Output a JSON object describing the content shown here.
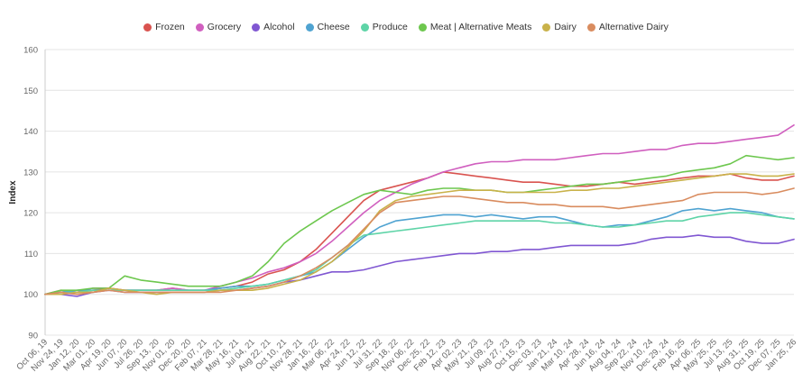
{
  "chart_data": {
    "type": "line",
    "ylabel": "Index",
    "ylim": [
      90,
      160
    ],
    "yticks": [
      90,
      100,
      110,
      120,
      130,
      140,
      150,
      160
    ],
    "grid": true,
    "legend_position": "top-center",
    "x_tick_labels": [
      "Oct 06, 19",
      "Nov 24, 19",
      "Jan 12, 20",
      "Mar 01, 20",
      "Apr 19, 20",
      "Jun 07, 20",
      "Jul 26, 20",
      "Sep 13, 20",
      "Nov 01, 20",
      "Dec 20, 20",
      "Feb 07, 21",
      "Mar 28, 21",
      "May 16, 21",
      "Jul 04, 21",
      "Aug 22, 21",
      "Oct 10, 21",
      "Nov 28, 21",
      "Jan 16, 22",
      "Mar 06, 22",
      "Apr 24, 22",
      "Jun 12, 22",
      "Jul 31, 22",
      "Sep 18, 22",
      "Nov 06, 22",
      "Dec 25, 22",
      "Feb 12, 23",
      "Apr 02, 23",
      "May 21, 23",
      "Jul 09, 23",
      "Aug 27, 23",
      "Oct 15, 23",
      "Dec 03, 23",
      "Jan 21, 24",
      "Mar 10, 24",
      "Apr 28, 24",
      "Jun 16, 24",
      "Aug 04, 24",
      "Sep 22, 24",
      "Nov 10, 24",
      "Dec 29, 24",
      "Feb 16, 25",
      "Apr 06, 25",
      "May 25, 25",
      "Jul 13, 25",
      "Aug 31, 25",
      "Oct 19, 25",
      "Dec 07, 25",
      "Jan 25, 26"
    ],
    "series": [
      {
        "name": "Frozen",
        "color": "#d9534f",
        "values": [
          100,
          101,
          100.5,
          101,
          101.5,
          101,
          101,
          101,
          101.5,
          101,
          101,
          101.5,
          102,
          103,
          105,
          106,
          108,
          111,
          115,
          119,
          123,
          125.5,
          126.5,
          127.5,
          128.5,
          130,
          129.5,
          129,
          128.5,
          128,
          127.5,
          127.5,
          127,
          126.5,
          126.5,
          127,
          127.5,
          127,
          127.5,
          128,
          128.5,
          129,
          129,
          129.5,
          128.5,
          128,
          128,
          129
        ]
      },
      {
        "name": "Grocery",
        "color": "#d05fbf",
        "values": [
          100,
          100.5,
          100.5,
          101.5,
          101.5,
          101,
          101,
          101,
          101.5,
          101,
          101,
          102,
          103,
          104,
          105.5,
          106.5,
          108,
          110,
          113,
          116.5,
          120,
          123,
          125,
          127,
          128.5,
          130,
          131,
          132,
          132.5,
          132.5,
          133,
          133,
          133,
          133.5,
          134,
          134.5,
          134.5,
          135,
          135.5,
          135.5,
          136.5,
          137,
          137,
          137.5,
          138,
          138.5,
          139,
          141.5
        ]
      },
      {
        "name": "Alcohol",
        "color": "#8057d2",
        "values": [
          100,
          100,
          99.5,
          100.5,
          101,
          100.5,
          100.5,
          100.5,
          100.5,
          100.5,
          100.5,
          101,
          101,
          101.5,
          102,
          103,
          103.5,
          104.5,
          105.5,
          105.5,
          106,
          107,
          108,
          108.5,
          109,
          109.5,
          110,
          110,
          110.5,
          110.5,
          111,
          111,
          111.5,
          112,
          112,
          112,
          112,
          112.5,
          113.5,
          114,
          114,
          114.5,
          114,
          114,
          113,
          112.5,
          112.5,
          113.5
        ]
      },
      {
        "name": "Cheese",
        "color": "#4fa3d1",
        "values": [
          100,
          100.5,
          101,
          101,
          101,
          101,
          101,
          101,
          101,
          101,
          101,
          101.5,
          102,
          102,
          102.5,
          103.5,
          104.5,
          105.5,
          108,
          111,
          114,
          116.5,
          118,
          118.5,
          119,
          119.5,
          119.5,
          119,
          119.5,
          119,
          118.5,
          119,
          119,
          118,
          117,
          116.5,
          117,
          117,
          118,
          119,
          120.5,
          121,
          120.5,
          121,
          120.5,
          120,
          119,
          118.5
        ]
      },
      {
        "name": "Produce",
        "color": "#5ed4a7",
        "values": [
          100,
          100.5,
          100.5,
          101,
          101,
          101,
          101,
          101,
          101,
          101,
          101,
          101,
          101.5,
          102,
          102.5,
          103.5,
          104.5,
          106,
          109,
          112,
          114.5,
          115,
          115.5,
          116,
          116.5,
          117,
          117.5,
          118,
          118,
          118,
          118,
          118,
          117.5,
          117.5,
          117,
          116.5,
          116.5,
          117,
          117.5,
          118,
          118,
          119,
          119.5,
          120,
          120,
          119.5,
          119,
          118.5
        ]
      },
      {
        "name": "Meat | Alternative Meats",
        "color": "#6dc74e",
        "values": [
          100,
          101,
          101,
          101.5,
          101.5,
          104.5,
          103.5,
          103,
          102.5,
          102,
          102,
          102,
          103,
          104.5,
          108,
          112.5,
          115.5,
          118,
          120.5,
          122.5,
          124.5,
          125.5,
          125,
          124.5,
          125.5,
          126,
          126,
          125.5,
          125.5,
          125,
          125,
          125.5,
          126,
          126.5,
          127,
          127,
          127.5,
          128,
          128.5,
          129,
          130,
          130.5,
          131,
          132,
          134,
          133.5,
          133,
          133.5
        ]
      },
      {
        "name": "Dairy",
        "color": "#c9b24a",
        "values": [
          100,
          100,
          100.5,
          100.5,
          101.5,
          101,
          100.5,
          100,
          100.5,
          100.5,
          100.5,
          101,
          101,
          101,
          101.5,
          102.5,
          103.5,
          105.5,
          108,
          111.5,
          115.5,
          120.5,
          123,
          124,
          124.5,
          125,
          125.5,
          125.5,
          125.5,
          125,
          125,
          125,
          125,
          125.5,
          125.5,
          126,
          126,
          126.5,
          127,
          127.5,
          128,
          128.5,
          129,
          129.5,
          129.5,
          129,
          129,
          129.5
        ]
      },
      {
        "name": "Alternative Dairy",
        "color": "#d98c5f",
        "values": [
          100,
          100.5,
          100,
          100.5,
          101,
          100.5,
          100.5,
          100.5,
          100.5,
          100.5,
          100.5,
          100.5,
          101,
          101.5,
          102,
          103,
          104.5,
          106.5,
          109,
          112,
          116,
          120,
          122.5,
          123,
          123.5,
          124,
          124,
          123.5,
          123,
          122.5,
          122.5,
          122,
          122,
          121.5,
          121.5,
          121.5,
          121,
          121.5,
          122,
          122.5,
          123,
          124.5,
          125,
          125,
          125,
          124.5,
          125,
          126
        ]
      }
    ]
  }
}
